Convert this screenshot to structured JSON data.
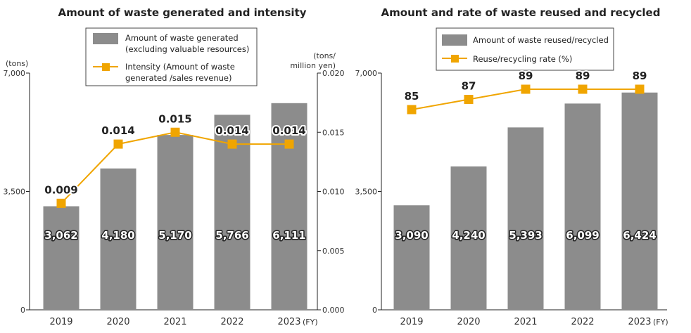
{
  "colors": {
    "bar": "#8c8c8c",
    "line": "#f0a500",
    "axis": "#222222",
    "legend_border": "#444444"
  },
  "chart_data": [
    {
      "type": "bar+line",
      "title": "Amount of waste generated and intensity",
      "categories": [
        "2019",
        "2020",
        "2021",
        "2022",
        "2023"
      ],
      "x_suffix": "(FY)",
      "series": [
        {
          "name": "Amount of waste generated (excluding valuable resources)",
          "legend_lines": [
            "Amount of waste generated",
            "(excluding valuable resources)"
          ],
          "kind": "bar",
          "axis": "left",
          "values": [
            3062,
            4180,
            5170,
            5766,
            6111
          ],
          "labels": [
            "3,062",
            "4,180",
            "5,170",
            "5,766",
            "6,111"
          ]
        },
        {
          "name": "Intensity (Amount of waste generated /sales revenue)",
          "legend_lines": [
            "Intensity (Amount of waste",
            "generated /sales revenue)"
          ],
          "kind": "line",
          "axis": "right",
          "values": [
            0.009,
            0.014,
            0.015,
            0.014,
            0.014
          ],
          "labels": [
            "0.009",
            "0.014",
            "0.015",
            "0.014",
            "0.014"
          ]
        }
      ],
      "y_left": {
        "unit": "(tons)",
        "min": 0,
        "max": 7000,
        "ticks": [
          0,
          3500,
          7000
        ],
        "tick_labels": [
          "0",
          "3,500",
          "7,000"
        ]
      },
      "y_right": {
        "unit_lines": [
          "(tons/",
          "million yen)"
        ],
        "min": 0,
        "max": 0.02,
        "ticks": [
          0,
          0.005,
          0.01,
          0.015,
          0.02
        ],
        "tick_labels": [
          "0.000",
          "0.005",
          "0.010",
          "0.015",
          "0.020"
        ]
      }
    },
    {
      "type": "bar+line",
      "title": "Amount and rate of waste reused and recycled",
      "categories": [
        "2019",
        "2020",
        "2021",
        "2022",
        "2023"
      ],
      "x_suffix": "(FY)",
      "series": [
        {
          "name": "Amount of waste reused/recycled",
          "legend_lines": [
            "Amount of waste reused/recycled"
          ],
          "kind": "bar",
          "axis": "left",
          "values": [
            3090,
            4240,
            5393,
            6099,
            6424
          ],
          "labels": [
            "3,090",
            "4,240",
            "5,393",
            "6,099",
            "6,424"
          ]
        },
        {
          "name": "Reuse/recycling rate (%)",
          "legend_lines": [
            "Reuse/recycling rate (%)"
          ],
          "kind": "line",
          "axis": "left-rate",
          "values": [
            85,
            87,
            89,
            89,
            89
          ],
          "labels": [
            "85",
            "87",
            "89",
            "89",
            "89"
          ]
        }
      ],
      "y_left": {
        "unit": "",
        "min": 0,
        "max": 7000,
        "ticks": [
          0,
          3500,
          7000
        ],
        "tick_labels": [
          "0",
          "3,500",
          "7,000"
        ]
      },
      "rate_scale": {
        "min": 0,
        "max": 100
      }
    }
  ]
}
